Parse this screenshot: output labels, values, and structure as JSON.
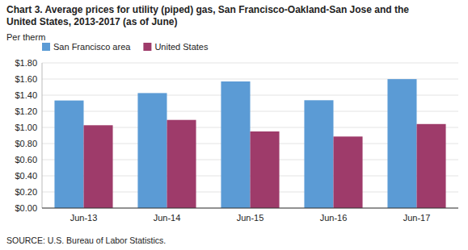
{
  "chart_data": {
    "type": "bar",
    "title": "Chart 3. Average prices for utility (piped) gas, San Francisco-Oakland-San Jose and the",
    "subtitle": "United States, 2013-2017  (as of June)",
    "y_label": "Per therm",
    "annotations": [
      "SOURCE: U.S. Bureau of Labor Statistics."
    ],
    "categories": [
      "Jun-13",
      "Jun-14",
      "Jun-15",
      "Jun-16",
      "Jun-17"
    ],
    "series": [
      {
        "name": "San Francisco area",
        "color": "#5B9BD5",
        "values": [
          1.334,
          1.426,
          1.57,
          1.337,
          1.599
        ]
      },
      {
        "name": "United States",
        "color": "#9E3B6A",
        "values": [
          1.027,
          1.093,
          0.95,
          0.887,
          1.042
        ]
      }
    ],
    "ylim": [
      0,
      1.8
    ],
    "yticks": [
      {
        "value": 0.0,
        "label": "$0.00"
      },
      {
        "value": 0.2,
        "label": "$0.20"
      },
      {
        "value": 0.4,
        "label": "$0.40"
      },
      {
        "value": 0.6,
        "label": "$0.60"
      },
      {
        "value": 0.8,
        "label": "$0.80"
      },
      {
        "value": 1.0,
        "label": "$1.00"
      },
      {
        "value": 1.2,
        "label": "$1.20"
      },
      {
        "value": 1.4,
        "label": "$1.40"
      },
      {
        "value": 1.6,
        "label": "$1.60"
      },
      {
        "value": 1.8,
        "label": "$1.80"
      }
    ],
    "grid": true,
    "legend": "top-left"
  }
}
